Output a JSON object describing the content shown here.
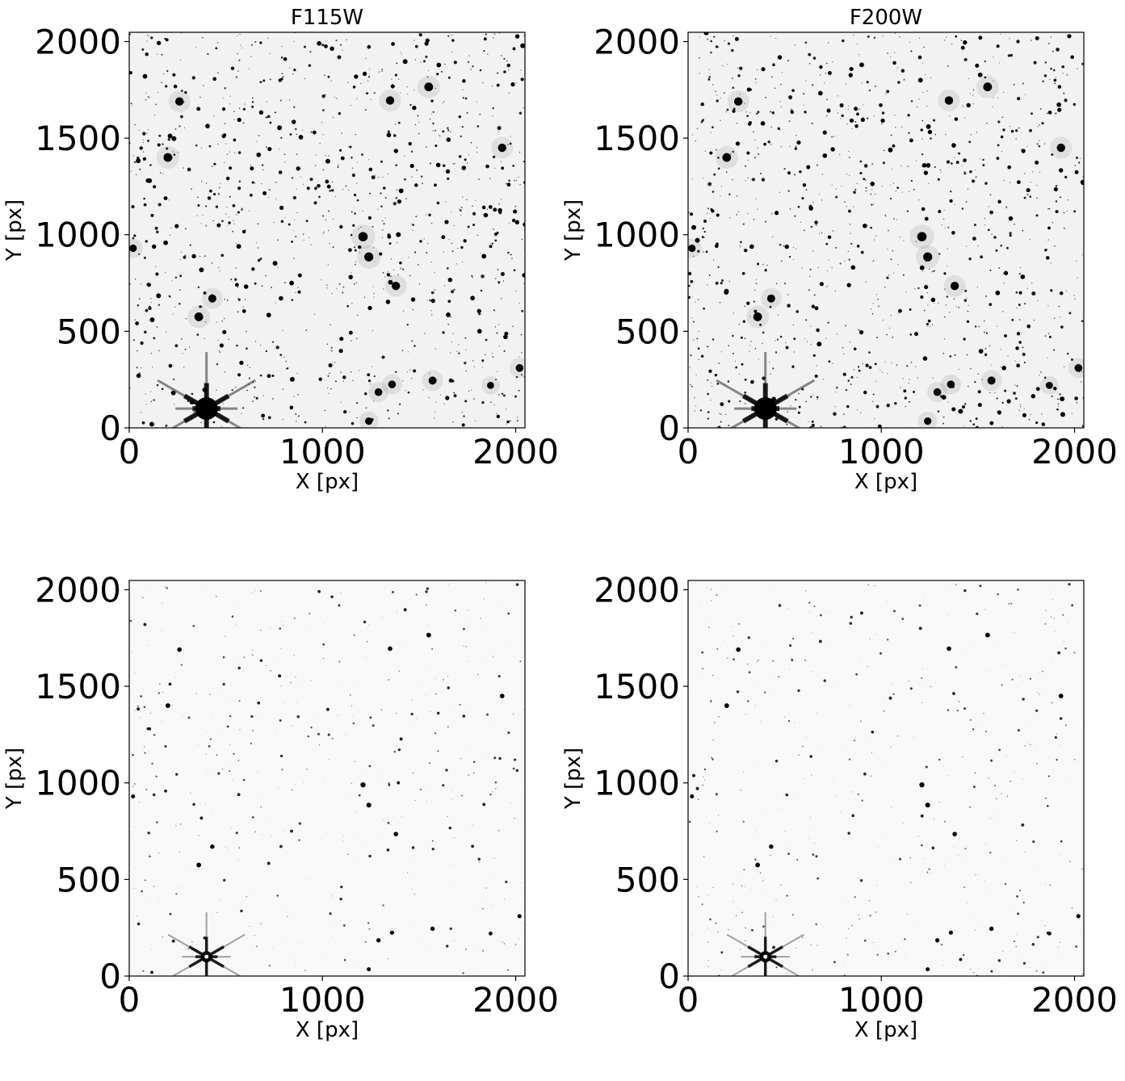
{
  "panels": [
    {
      "id": "tl",
      "title": "F115W",
      "xlabel": "X [px]",
      "ylabel": "Y [px]",
      "xticks": [
        "0",
        "1000",
        "2000"
      ],
      "yticks": [
        "0",
        "500",
        "1000",
        "1500",
        "2000"
      ],
      "view": "contrast-stretched",
      "seed": 11
    },
    {
      "id": "tr",
      "title": "F200W",
      "xlabel": "X [px]",
      "ylabel": "Y [px]",
      "xticks": [
        "0",
        "1000",
        "2000"
      ],
      "yticks": [
        "0",
        "500",
        "1000",
        "1500",
        "2000"
      ],
      "view": "contrast-stretched",
      "seed": 23
    },
    {
      "id": "bl",
      "title": "",
      "xlabel": "X [px]",
      "ylabel": "Y [px]",
      "xticks": [
        "0",
        "1000",
        "2000"
      ],
      "yticks": [
        "0",
        "500",
        "1000",
        "1500",
        "2000"
      ],
      "view": "linear",
      "seed": 11
    },
    {
      "id": "br",
      "title": "",
      "xlabel": "X [px]",
      "ylabel": "Y [px]",
      "xticks": [
        "0",
        "1000",
        "2000"
      ],
      "yticks": [
        "0",
        "500",
        "1000",
        "1500",
        "2000"
      ],
      "view": "linear",
      "seed": 23
    }
  ],
  "image_extent": {
    "x_max": 2048,
    "y_max": 2048
  },
  "bright_sources": [
    {
      "x": 400,
      "y": 100,
      "brightness": 1.0,
      "kind": "saturated-spikes"
    },
    {
      "x": 360,
      "y": 575,
      "brightness": 0.6
    },
    {
      "x": 430,
      "y": 670,
      "brightness": 0.5
    },
    {
      "x": 1210,
      "y": 990,
      "brightness": 0.7
    },
    {
      "x": 1240,
      "y": 885,
      "brightness": 0.65
    },
    {
      "x": 1380,
      "y": 735,
      "brightness": 0.55
    },
    {
      "x": 200,
      "y": 1400,
      "brightness": 0.6
    },
    {
      "x": 260,
      "y": 1690,
      "brightness": 0.55
    },
    {
      "x": 1350,
      "y": 1695,
      "brightness": 0.55
    },
    {
      "x": 1550,
      "y": 1765,
      "brightness": 0.6
    },
    {
      "x": 1930,
      "y": 1450,
      "brightness": 0.55
    },
    {
      "x": 1570,
      "y": 245,
      "brightness": 0.5
    },
    {
      "x": 1360,
      "y": 225,
      "brightness": 0.45
    },
    {
      "x": 1290,
      "y": 185,
      "brightness": 0.45
    },
    {
      "x": 2020,
      "y": 310,
      "brightness": 0.45
    },
    {
      "x": 1240,
      "y": 35,
      "brightness": 0.4
    },
    {
      "x": 20,
      "y": 930,
      "brightness": 0.4
    },
    {
      "x": 1870,
      "y": 220,
      "brightness": 0.35
    }
  ],
  "colors": {
    "background_stretched": "#f2f2f2",
    "background_linear": "#f8f8f8",
    "source": "#000000",
    "axis": "#000000"
  }
}
